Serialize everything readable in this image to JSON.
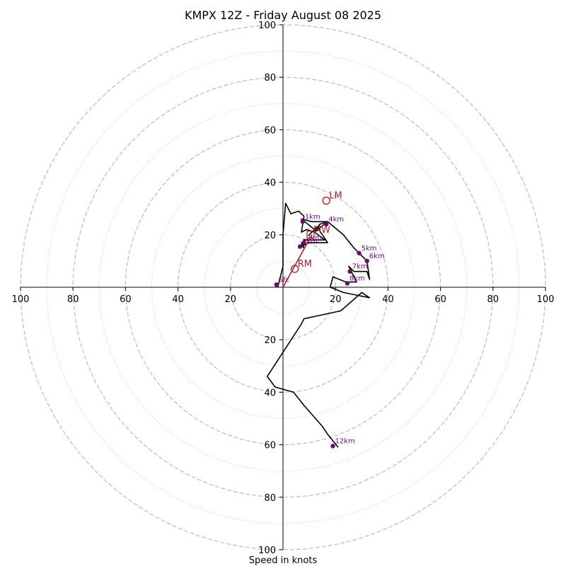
{
  "chart_data": {
    "type": "line",
    "title": "KMPX 12Z - Friday August 08 2025",
    "xlabel": "Speed in knots",
    "ylabel": "",
    "xlim": [
      -100,
      100
    ],
    "ylim": [
      -100,
      100
    ],
    "x_ticks": [
      "100",
      "80",
      "60",
      "40",
      "20",
      "20",
      "40",
      "60",
      "80",
      "100"
    ],
    "y_ticks": [
      "100",
      "80",
      "60",
      "40",
      "20",
      "20",
      "40",
      "60",
      "80",
      "100"
    ],
    "rings_dashed": [
      20,
      40,
      60,
      80,
      100
    ],
    "rings_dotted": [
      10,
      30,
      50,
      70,
      90
    ],
    "colors": {
      "trace": "#000000",
      "height_marker": "#6a0a6a",
      "height_label": "#7a0a7a",
      "motion": "#b22222",
      "grid": "#bbbbbb"
    },
    "hodograph": {
      "u": [
        -2,
        0,
        0,
        1,
        3,
        6,
        8,
        7,
        9,
        12,
        14,
        17,
        12,
        16,
        8,
        7,
        8,
        7,
        8,
        6,
        8,
        10,
        17,
        13,
        10,
        12,
        7,
        11,
        14,
        17,
        23,
        27,
        30,
        32,
        33,
        32,
        27,
        25,
        28,
        24,
        19,
        18,
        23,
        28,
        33,
        30,
        22,
        8,
        7,
        -6,
        -3,
        4,
        8,
        15,
        17,
        21
      ],
      "v": [
        0,
        8,
        20,
        32,
        28,
        29,
        27,
        21,
        22,
        21,
        24,
        25,
        21,
        18,
        18,
        16,
        15,
        17,
        16,
        15,
        16,
        17,
        17,
        23,
        20,
        22,
        26,
        25,
        25,
        25,
        20,
        15,
        12,
        10,
        3,
        6,
        6,
        8,
        2,
        2,
        4,
        0,
        -2,
        -3,
        -4,
        -2,
        -9,
        -12,
        -14,
        -34,
        -38,
        -40,
        -45,
        -53,
        -56,
        -61
      ]
    },
    "height_markers": [
      {
        "label": "Sfc",
        "u": -2.5,
        "v": 1
      },
      {
        "label": "1km",
        "u": 7.5,
        "v": 25
      },
      {
        "label": "2km",
        "u": 8,
        "v": 17
      },
      {
        "label": "3km",
        "u": 6.5,
        "v": 15.5
      },
      {
        "label": "4km",
        "u": 16.5,
        "v": 24
      },
      {
        "label": "5km",
        "u": 29,
        "v": 13
      },
      {
        "label": "6km",
        "u": 32,
        "v": 10
      },
      {
        "label": "7km",
        "u": 25.5,
        "v": 6
      },
      {
        "label": "8km",
        "u": 24.5,
        "v": 1.5
      },
      {
        "label": "12km",
        "u": 19,
        "v": -60.5
      }
    ],
    "storm_motion": [
      {
        "label": "LM",
        "u": 16.5,
        "v": 33,
        "marker": "circle"
      },
      {
        "label": "MW",
        "u": 10.5,
        "v": 20,
        "marker": "square"
      },
      {
        "label": "RM",
        "u": 4.5,
        "v": 7,
        "marker": "circle"
      }
    ],
    "motion_vector": {
      "u0": 0,
      "v0": 0,
      "u1": 11,
      "v1": 20
    }
  }
}
